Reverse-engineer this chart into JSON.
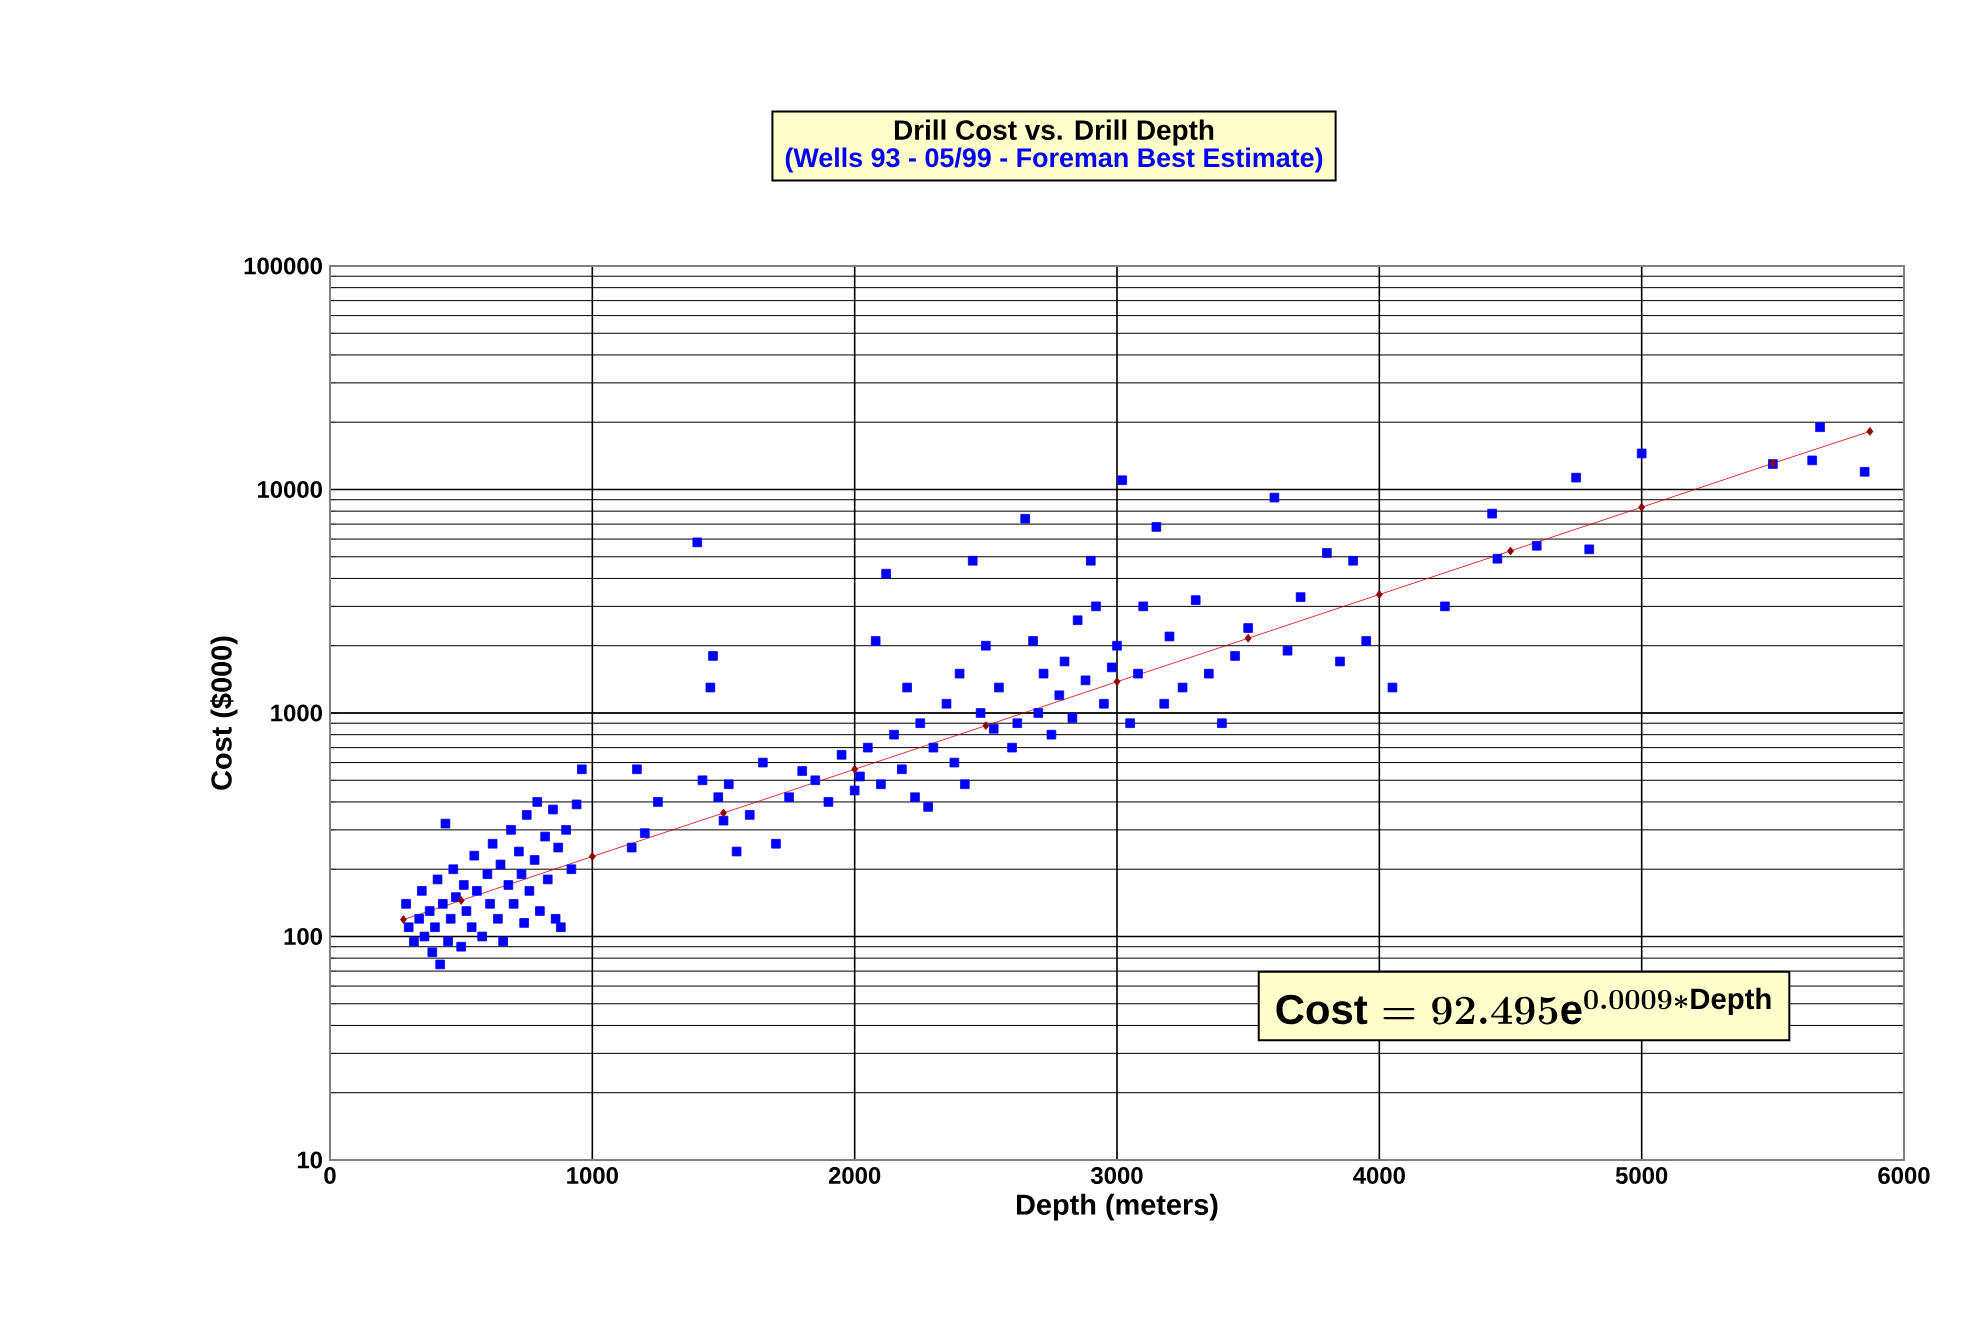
{
  "chart_data": {
    "type": "scatter",
    "title": "Drill Cost vs. Drill Depth",
    "subtitle": "(Wells 93 - 05/99 - Foreman Best Estimate)",
    "xlabel": "Depth (meters)",
    "ylabel": "Cost ($000)",
    "annotations": [
      "\\text{Cost} = 92.495\\text{e}^{0.0009*\\text{Depth}}"
    ],
    "log": "y",
    "grid": true,
    "xlim": [
      0,
      6000
    ],
    "xticks": [
      0,
      1000,
      2000,
      3000,
      4000,
      5000,
      6000
    ],
    "ylim": [
      10,
      100000
    ],
    "yticks": [
      10,
      100,
      1000,
      10000,
      100000
    ],
    "series": [
      {
        "color": "#0000ff",
        "marker": "square",
        "x": [
          290,
          300,
          320,
          340,
          350,
          360,
          380,
          390,
          400,
          410,
          420,
          430,
          440,
          450,
          460,
          470,
          480,
          500,
          510,
          520,
          540,
          550,
          560,
          580,
          600,
          610,
          620,
          640,
          650,
          660,
          680,
          690,
          700,
          720,
          730,
          740,
          750,
          760,
          780,
          790,
          800,
          820,
          830,
          850,
          860,
          870,
          880,
          900,
          920,
          940,
          960,
          1150,
          1170,
          1200,
          1250,
          1400,
          1420,
          1450,
          1460,
          1480,
          1500,
          1520,
          1550,
          1600,
          1650,
          1700,
          1750,
          1800,
          1850,
          1900,
          1950,
          2000,
          2020,
          2050,
          2080,
          2100,
          2120,
          2150,
          2180,
          2200,
          2230,
          2250,
          2280,
          2300,
          2350,
          2380,
          2400,
          2420,
          2450,
          2480,
          2500,
          2530,
          2550,
          2600,
          2620,
          2650,
          2680,
          2700,
          2720,
          2750,
          2780,
          2800,
          2830,
          2850,
          2880,
          2900,
          2920,
          2950,
          2980,
          3000,
          3020,
          3050,
          3080,
          3100,
          3150,
          3180,
          3200,
          3250,
          3300,
          3350,
          3400,
          3450,
          3500,
          3600,
          3650,
          3700,
          3800,
          3850,
          3900,
          3950,
          4050,
          4250,
          4430,
          4450,
          4600,
          4750,
          4800,
          5000,
          5500,
          5650,
          5680,
          5850
        ],
        "values": [
          140,
          110,
          95,
          120,
          160,
          100,
          130,
          85,
          110,
          180,
          75,
          140,
          320,
          95,
          120,
          200,
          150,
          90,
          170,
          130,
          110,
          230,
          160,
          100,
          190,
          140,
          260,
          120,
          210,
          95,
          170,
          300,
          140,
          240,
          190,
          115,
          350,
          160,
          220,
          400,
          130,
          280,
          180,
          370,
          120,
          250,
          110,
          300,
          200,
          390,
          560,
          250,
          560,
          290,
          400,
          5800,
          500,
          1300,
          1800,
          420,
          330,
          480,
          240,
          350,
          600,
          260,
          420,
          550,
          500,
          400,
          650,
          450,
          520,
          700,
          2100,
          480,
          4200,
          800,
          560,
          1300,
          420,
          900,
          380,
          700,
          1100,
          600,
          1500,
          480,
          4800,
          1000,
          2000,
          850,
          1300,
          700,
          900,
          7400,
          2100,
          1000,
          1500,
          800,
          1200,
          1700,
          950,
          2600,
          1400,
          4800,
          3000,
          1100,
          1600,
          2000,
          11000,
          900,
          1500,
          3000,
          6800,
          1100,
          2200,
          1300,
          3200,
          1500,
          900,
          1800,
          2400,
          9200,
          1900,
          3300,
          5200,
          1700,
          4800,
          2100,
          1300,
          3000,
          7800,
          4900,
          5600,
          11300,
          5400,
          14500,
          13000,
          13500,
          19000,
          12000
        ]
      },
      {
        "type": "line",
        "color": "#cc0000",
        "marker": "diamond",
        "line_style": "solid",
        "x": [
          280,
          500,
          1000,
          1500,
          2000,
          2500,
          3000,
          3500,
          4000,
          4500,
          5000,
          5500,
          5870
        ],
        "values": [
          119,
          145,
          228,
          357,
          560,
          878,
          1380,
          2160,
          3390,
          5310,
          8330,
          13100,
          18200
        ]
      }
    ]
  }
}
